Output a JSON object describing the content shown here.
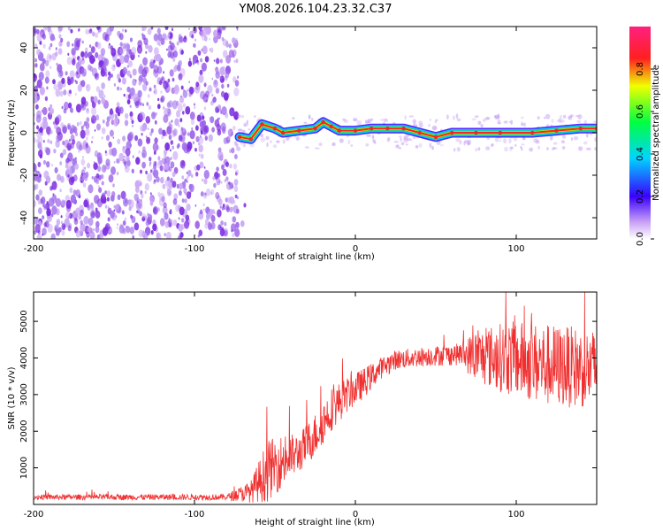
{
  "title": "YM08.2026.104.23.32.C37",
  "colors": {
    "axis": "#000000",
    "noise": "#7b2be0",
    "noise_light": "#c9a6f5",
    "snr_line": "#f03030"
  },
  "chart_data": [
    {
      "type": "heatmap",
      "name": "spectrogram",
      "xlabel": "Height of straight line (km)",
      "ylabel": "Frequency (Hz)",
      "xlim": [
        -200,
        150
      ],
      "ylim": [
        -50,
        50
      ],
      "xticks": [
        -200,
        -100,
        0,
        100
      ],
      "yticks": [
        -40,
        -20,
        0,
        20,
        40
      ],
      "xtick_labels": [
        "-200",
        "-100",
        "0",
        "100"
      ],
      "ytick_labels": [
        "-40",
        "-20",
        "0",
        "20",
        "40"
      ],
      "noise_region_x": [
        -200,
        -73
      ],
      "signal_onset_x": -73,
      "signal_trace": [
        {
          "x": -72,
          "y": -2
        },
        {
          "x": -65,
          "y": -3
        },
        {
          "x": -58,
          "y": 4
        },
        {
          "x": -50,
          "y": 2
        },
        {
          "x": -45,
          "y": 0
        },
        {
          "x": -35,
          "y": 1
        },
        {
          "x": -25,
          "y": 2
        },
        {
          "x": -20,
          "y": 5
        },
        {
          "x": -15,
          "y": 3
        },
        {
          "x": -10,
          "y": 1
        },
        {
          "x": 0,
          "y": 1
        },
        {
          "x": 10,
          "y": 2
        },
        {
          "x": 20,
          "y": 2
        },
        {
          "x": 30,
          "y": 2
        },
        {
          "x": 40,
          "y": 0
        },
        {
          "x": 50,
          "y": -2
        },
        {
          "x": 60,
          "y": 0
        },
        {
          "x": 75,
          "y": 0
        },
        {
          "x": 90,
          "y": 0
        },
        {
          "x": 110,
          "y": 0
        },
        {
          "x": 125,
          "y": 1
        },
        {
          "x": 140,
          "y": 2
        },
        {
          "x": 150,
          "y": 2
        }
      ],
      "colorbar": {
        "label": "Normalized spectral amplitude",
        "range": [
          0,
          1
        ],
        "ticks": [
          0.0,
          0.2,
          0.4,
          0.6,
          0.8
        ],
        "tick_labels": [
          "0.0",
          "0.2",
          "0.4",
          "0.6",
          "0.8"
        ]
      }
    },
    {
      "type": "line",
      "name": "snr",
      "xlabel": "Height of straight line (km)",
      "ylabel": "SNR (10 * v/v)",
      "xlim": [
        -200,
        150
      ],
      "ylim": [
        0,
        5800
      ],
      "xticks": [
        -200,
        -100,
        0,
        100
      ],
      "yticks": [
        1000,
        2000,
        3000,
        4000,
        5000
      ],
      "xtick_labels": [
        "-200",
        "-100",
        "0",
        "100"
      ],
      "ytick_labels": [
        "1000",
        "2000",
        "3000",
        "4000",
        "5000"
      ],
      "envelope": [
        {
          "x": -200,
          "base": 200,
          "spread": 120
        },
        {
          "x": -80,
          "base": 200,
          "spread": 140
        },
        {
          "x": -65,
          "base": 350,
          "spread": 500
        },
        {
          "x": -55,
          "base": 900,
          "spread": 1400
        },
        {
          "x": -45,
          "base": 1200,
          "spread": 1200
        },
        {
          "x": -35,
          "base": 1400,
          "spread": 900
        },
        {
          "x": -25,
          "base": 1900,
          "spread": 1000
        },
        {
          "x": -15,
          "base": 2600,
          "spread": 1000
        },
        {
          "x": -5,
          "base": 3000,
          "spread": 800
        },
        {
          "x": 5,
          "base": 3300,
          "spread": 700
        },
        {
          "x": 15,
          "base": 3700,
          "spread": 500
        },
        {
          "x": 25,
          "base": 3950,
          "spread": 450
        },
        {
          "x": 45,
          "base": 4050,
          "spread": 450
        },
        {
          "x": 65,
          "base": 4100,
          "spread": 500
        },
        {
          "x": 75,
          "base": 4050,
          "spread": 1200
        },
        {
          "x": 95,
          "base": 4000,
          "spread": 1700
        },
        {
          "x": 120,
          "base": 3800,
          "spread": 1900
        },
        {
          "x": 150,
          "base": 3700,
          "spread": 1800
        }
      ]
    }
  ]
}
